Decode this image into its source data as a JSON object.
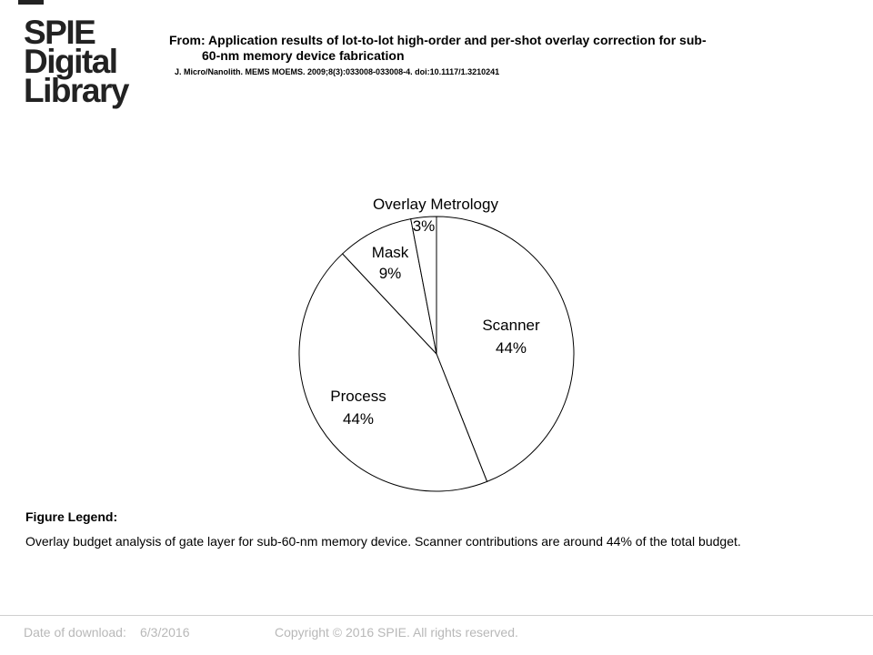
{
  "logo": {
    "line1": "SPIE",
    "line2": "Digital",
    "line3": "Library"
  },
  "header": {
    "from_line1": "From: Application results of lot-to-lot high-order and per-shot overlay correction for sub-",
    "from_line2": "60-nm memory device fabrication",
    "journal": "J. Micro/Nanolith. MEMS MOEMS. 2009;8(3):033008-033008-4. doi:10.1117/1.3210241"
  },
  "chart_data": {
    "type": "pie",
    "slices": [
      {
        "label": "Scanner",
        "pct_label": "44%",
        "value": 44
      },
      {
        "label": "Process",
        "pct_label": "44%",
        "value": 44
      },
      {
        "label": "Mask",
        "pct_label": "9%",
        "value": 9
      },
      {
        "label": "Overlay Metrology",
        "pct_label": "3%",
        "value": 3
      }
    ],
    "fill": "#ffffff",
    "stroke": "#000000"
  },
  "legend": {
    "title": "Figure Legend:",
    "text": "Overlay budget analysis of gate layer for sub-60-nm memory device. Scanner contributions are around 44% of the total budget."
  },
  "footer": {
    "download_label": "Date of download:",
    "download_date": "6/3/2016",
    "copyright": "Copyright © 2016 SPIE. All rights reserved."
  }
}
